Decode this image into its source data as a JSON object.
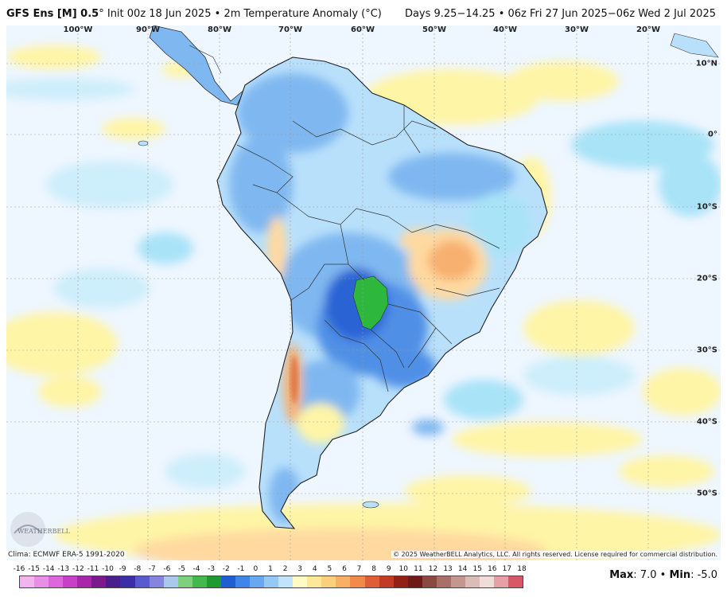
{
  "header": {
    "model": "GFS Ens [M] 0.5",
    "degree_symbol": "°",
    "init": "Init 00z 18 Jun 2025",
    "separator": "•",
    "variable": "2m Temperature Anomaly (°C)",
    "valid": "Days 9.25−14.25 • 06z Fri 27 Jun 2025−06z Wed 2 Jul 2025"
  },
  "map": {
    "region": "South America",
    "lon_labels": [
      "100°W",
      "90°W",
      "80°W",
      "70°W",
      "60°W",
      "50°W",
      "40°W",
      "30°W",
      "20°W"
    ],
    "lat_labels": [
      "10°N",
      "0°",
      "10°S",
      "20°S",
      "30°S",
      "40°S",
      "50°S"
    ],
    "colors": {
      "ocean_base": "#eef6ff",
      "land_base": "#b9e0fb",
      "light_cyan": "#a9e3f8",
      "light_blue": "#7fb8f0",
      "mid_blue": "#4f8fe6",
      "deep_blue": "#2a63d4",
      "green_anomaly": "#2db83d",
      "light_yellow": "#fff5a6",
      "peach": "#ffd9a0",
      "orange": "#f7b070",
      "red_orange": "#e07a4a",
      "border": "#333333"
    }
  },
  "footer": {
    "clim": "Clima: ECMWF ERA-5 1991-2020",
    "copyright": "© 2025 WeatherBELL Analytics, LLC. All rights reserved. License required for commercial distribution.",
    "max_label": "Max",
    "max_value": "7.0",
    "min_label": "Min",
    "min_value": "-5.0",
    "bullet": "•"
  },
  "colorbar": {
    "labels": [
      "-16",
      "-15",
      "-14",
      "-13",
      "-12",
      "-11",
      "-10",
      "-9",
      "-8",
      "-7",
      "-6",
      "-5",
      "-4",
      "-3",
      "-2",
      "-1",
      "0",
      "1",
      "2",
      "3",
      "4",
      "5",
      "6",
      "7",
      "8",
      "9",
      "10",
      "11",
      "12",
      "13",
      "14",
      "15",
      "16",
      "17",
      "18"
    ],
    "colors": [
      "#f2b3ef",
      "#e98ee6",
      "#dd66dd",
      "#c940c8",
      "#a826a8",
      "#7a1a8c",
      "#4a1d8c",
      "#3b2fa8",
      "#5a5ad0",
      "#8585e0",
      "#a8c8ec",
      "#7ed07e",
      "#43b84b",
      "#1f9a2e",
      "#1f5fd1",
      "#3f86e8",
      "#68a8f0",
      "#95c8f5",
      "#c2e4fb",
      "#fefcc4",
      "#fde89a",
      "#fbd07c",
      "#f7b064",
      "#f28a4c",
      "#e05e36",
      "#c03a24",
      "#932016",
      "#6e1a18",
      "#8a4a40",
      "#a87068",
      "#c49690",
      "#dcbcb8",
      "#f0dcd8",
      "#e8a0a8",
      "#d85868"
    ]
  }
}
